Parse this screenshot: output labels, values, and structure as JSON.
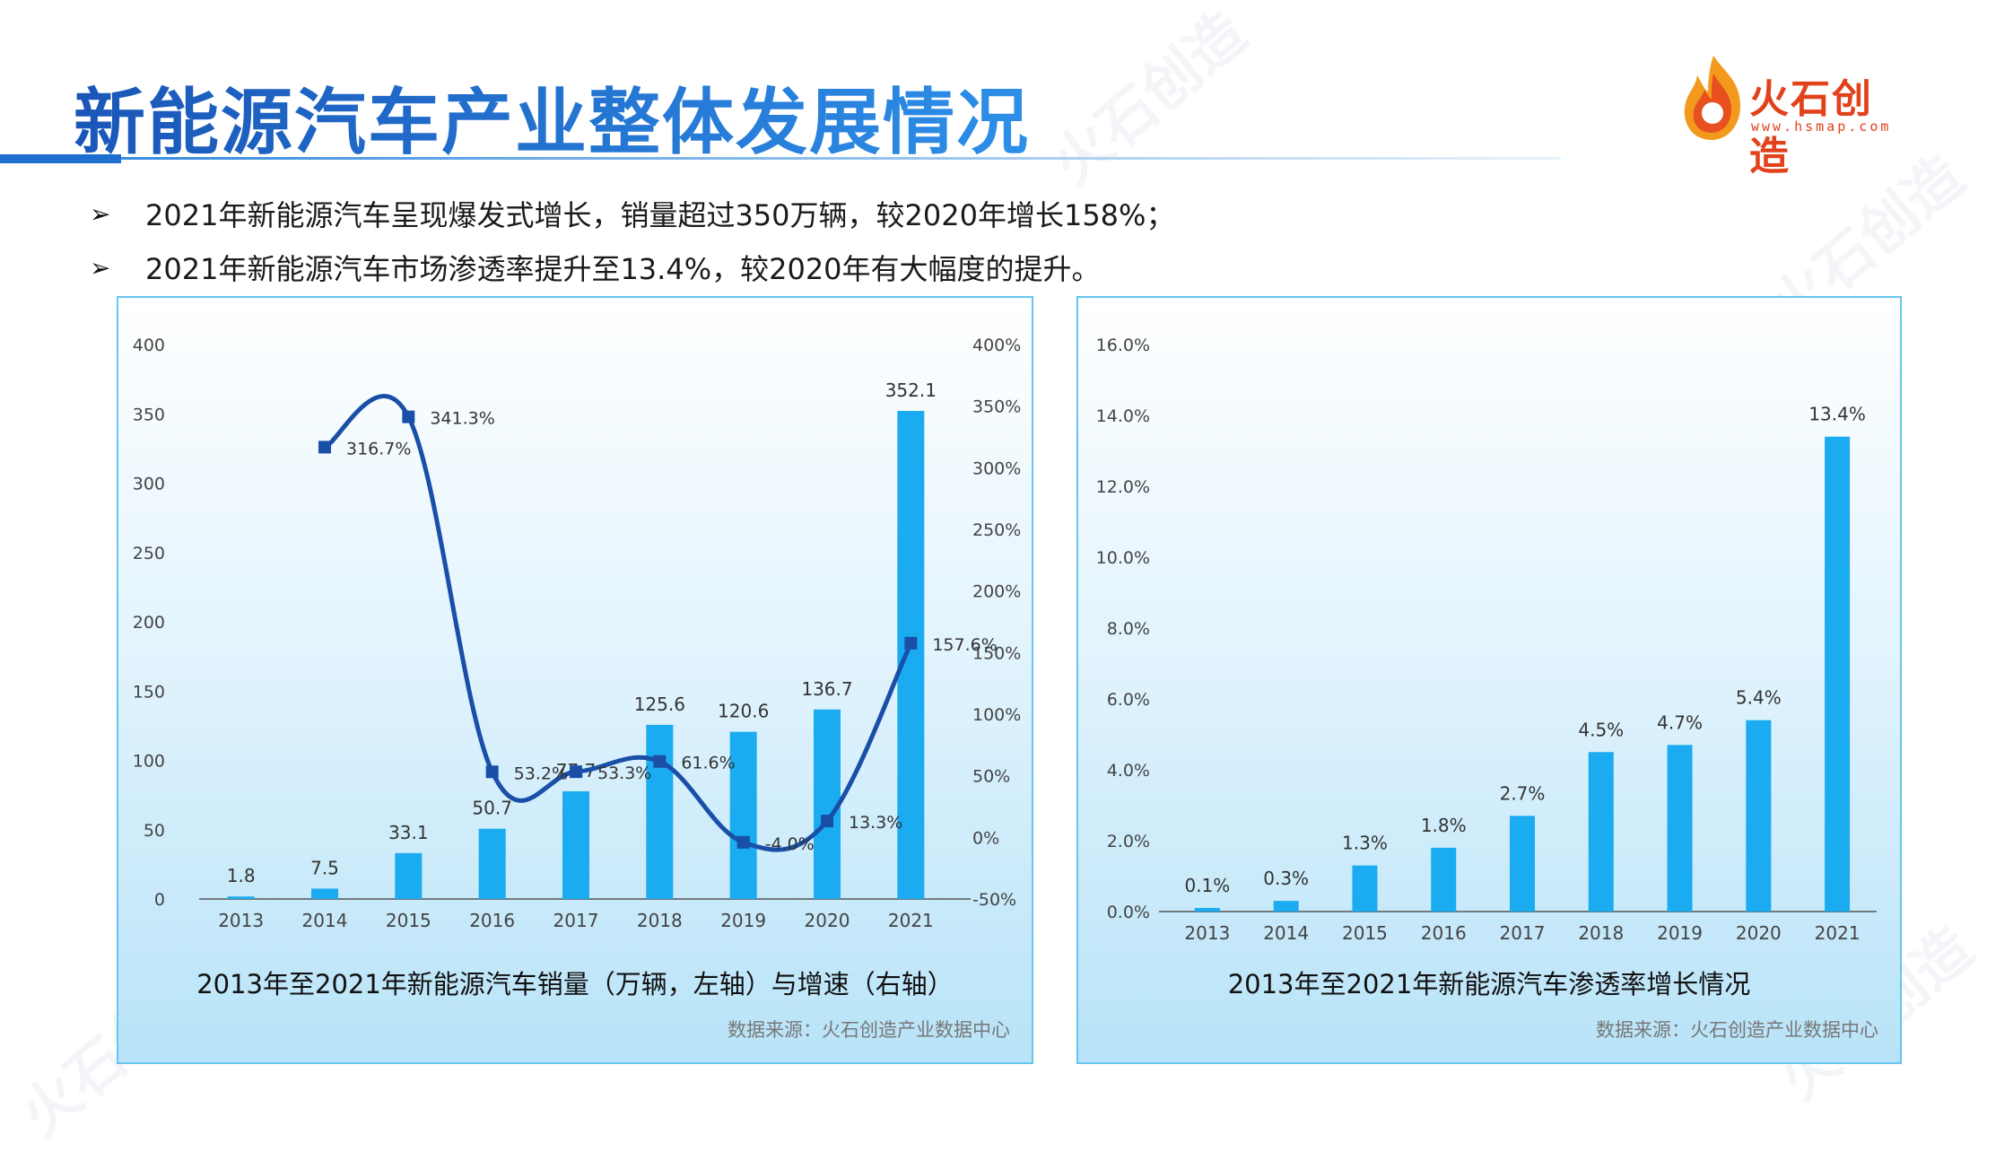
{
  "header": {
    "title": "新能源汽车产业整体发展情况",
    "logo_name": "火石创造",
    "logo_url": "www.hsmap.com"
  },
  "bullets": [
    "2021年新能源汽车呈现爆发式增长，销量超过350万辆，较2020年增长158%；",
    "2021年新能源汽车市场渗透率提升至13.4%，较2020年有大幅度的提升。"
  ],
  "watermark_text": "火石创造",
  "colors": {
    "title": "#1f5fbf",
    "bar": "#1aabf0",
    "line": "#1a4fa8",
    "panel_border": "#66c6ee",
    "logo": "#e2421b"
  },
  "chart_data": [
    {
      "type": "bar",
      "title": "2013年至2021年新能源汽车销量（万辆，左轴）与增速（右轴）",
      "source": "数据来源：火石创造产业数据中心",
      "categories": [
        "2013",
        "2014",
        "2015",
        "2016",
        "2017",
        "2018",
        "2019",
        "2020",
        "2021"
      ],
      "values": [
        1.8,
        7.5,
        33.1,
        50.7,
        77.7,
        125.6,
        120.6,
        136.7,
        352.1
      ],
      "value_labels": [
        "1.8",
        "7.5",
        "33.1",
        "50.7",
        "77.7",
        "125.6",
        "120.6",
        "136.7",
        "352.1"
      ],
      "ylim": [
        0,
        400
      ],
      "yticks": [
        0,
        50,
        100,
        150,
        200,
        250,
        300,
        350,
        400
      ],
      "y2lim": [
        -50,
        400
      ],
      "y2ticks": [
        "-50%",
        "0%",
        "50%",
        "100%",
        "150%",
        "200%",
        "250%",
        "300%",
        "350%",
        "400%"
      ],
      "line": {
        "type": "line",
        "x": [
          "2014",
          "2015",
          "2016",
          "2017",
          "2018",
          "2019",
          "2020",
          "2021"
        ],
        "values": [
          316.7,
          341.3,
          53.2,
          53.3,
          61.6,
          -4.0,
          13.3,
          157.6
        ],
        "labels": [
          "316.7%",
          "341.3%",
          "53.2%",
          "53.3%",
          "61.6%",
          "-4.0%",
          "13.3%",
          "157.6%"
        ]
      },
      "grid": false
    },
    {
      "type": "bar",
      "title": "2013年至2021年新能源汽车渗透率增长情况",
      "source": "数据来源：火石创造产业数据中心",
      "categories": [
        "2013",
        "2014",
        "2015",
        "2016",
        "2017",
        "2018",
        "2019",
        "2020",
        "2021"
      ],
      "values": [
        0.1,
        0.3,
        1.3,
        1.8,
        2.7,
        4.5,
        4.7,
        5.4,
        13.4
      ],
      "value_labels": [
        "0.1%",
        "0.3%",
        "1.3%",
        "1.8%",
        "2.7%",
        "4.5%",
        "4.7%",
        "5.4%",
        "13.4%"
      ],
      "ylim": [
        0,
        16
      ],
      "yticks": [
        "0.0%",
        "2.0%",
        "4.0%",
        "6.0%",
        "8.0%",
        "10.0%",
        "12.0%",
        "14.0%",
        "16.0%"
      ],
      "grid": false
    }
  ]
}
